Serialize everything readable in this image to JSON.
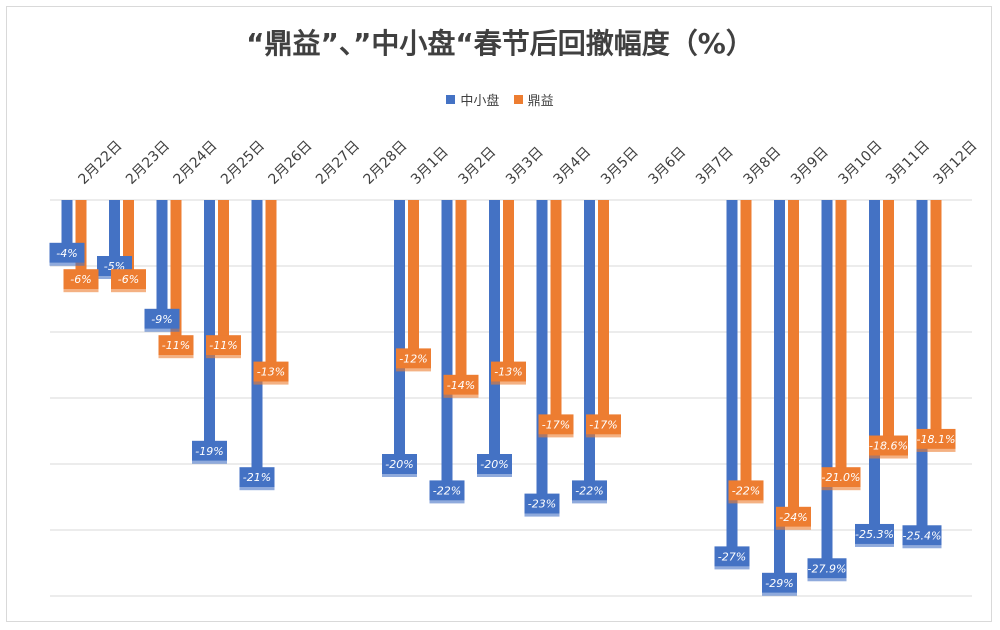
{
  "chart_data": {
    "type": "bar",
    "title": "“鼎益”、”中小盘“春节后回撤幅度（%）",
    "categories": [
      "2月22日",
      "2月23日",
      "2月24日",
      "2月25日",
      "2月26日",
      "2月27日",
      "2月28日",
      "3月1日",
      "3月2日",
      "3月3日",
      "3月4日",
      "3月5日",
      "3月6日",
      "3月7日",
      "3月8日",
      "3月9日",
      "3月10日",
      "3月11日",
      "3月12日"
    ],
    "series": [
      {
        "name": "中小盘",
        "color": "#4472c4",
        "values": [
          -4,
          -5,
          -9,
          -19,
          -21,
          null,
          null,
          -20,
          -22,
          -20,
          -23,
          -22,
          null,
          null,
          -27,
          -29,
          -27.9,
          -25.3,
          -25.4
        ],
        "labels": [
          "-4%",
          "-5%",
          "-9%",
          "-19%",
          "-21%",
          "",
          "",
          "-20%",
          "-22%",
          "-20%",
          "-23%",
          "-22%",
          "",
          "",
          "-27%",
          "-29%",
          "-27.9%",
          "-25.3%",
          "-25.4%"
        ]
      },
      {
        "name": "鼎益",
        "color": "#ed7d31",
        "values": [
          -6,
          -6,
          -11,
          -11,
          -13,
          null,
          null,
          -12,
          -14,
          -13,
          -17,
          -17,
          null,
          null,
          -22,
          -24,
          -21.0,
          -18.6,
          -18.1
        ],
        "labels": [
          "-6%",
          "-6%",
          "-11%",
          "-11%",
          "-13%",
          "",
          "",
          "-12%",
          "-14%",
          "-13%",
          "-17%",
          "-17%",
          "",
          "",
          "-22%",
          "-24%",
          "-21.0%",
          "-18.6%",
          "-18.1%"
        ]
      }
    ],
    "ylim": [
      -30,
      0
    ],
    "grid": true,
    "legend_position": "top"
  }
}
